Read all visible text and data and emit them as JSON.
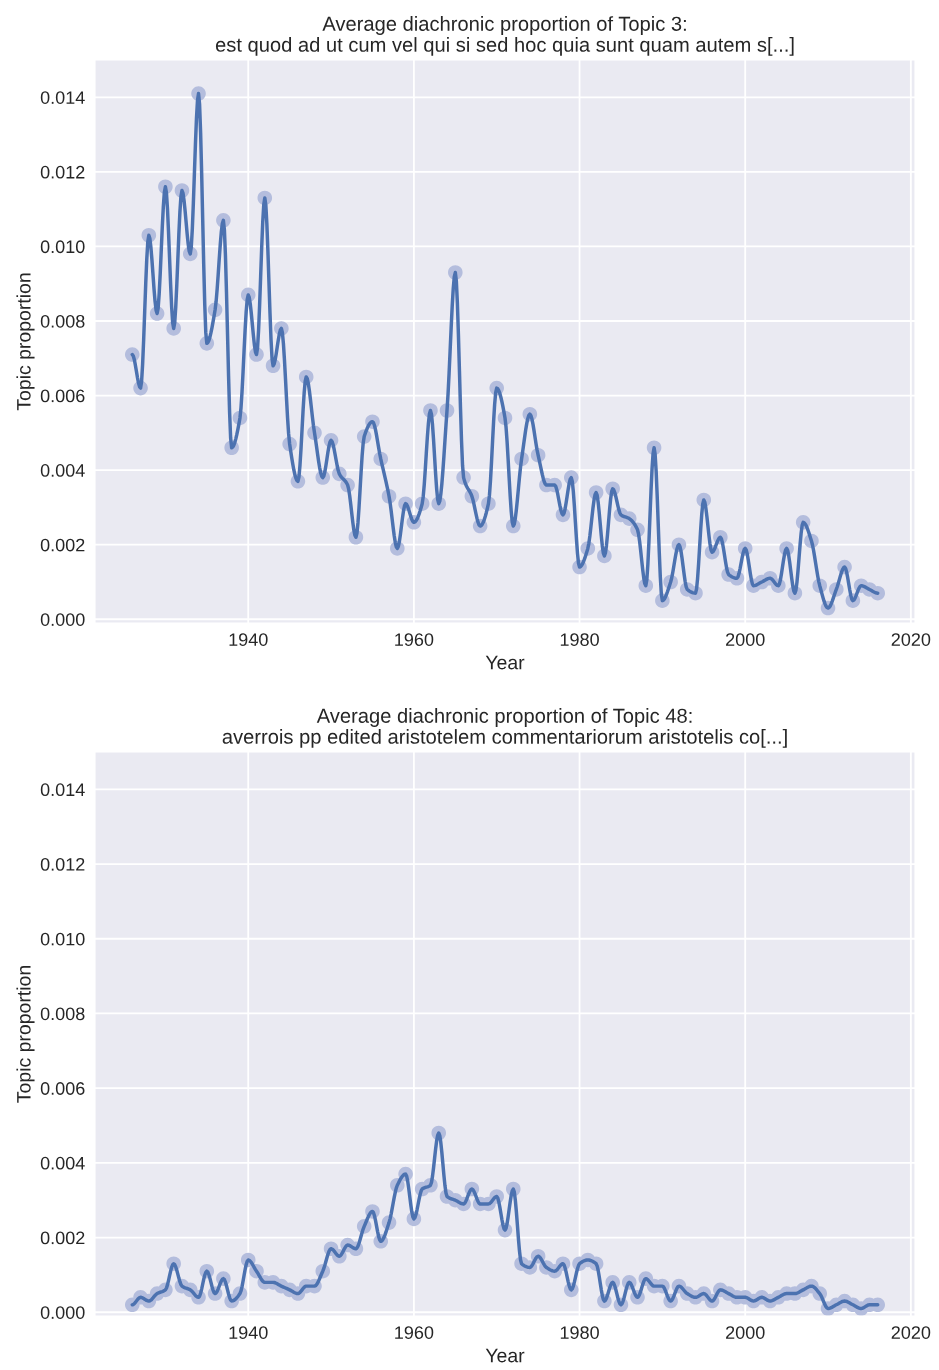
{
  "chart_data": [
    {
      "type": "line",
      "title": "Average diachronic proportion of Topic 3:\nest quod ad ut cum vel qui si sed hoc quia sunt quam autem s[...]",
      "xlabel": "Year",
      "ylabel": "Topic proportion",
      "x": [
        1926,
        1927,
        1928,
        1929,
        1930,
        1931,
        1932,
        1933,
        1934,
        1935,
        1936,
        1937,
        1938,
        1939,
        1940,
        1941,
        1942,
        1943,
        1944,
        1945,
        1946,
        1947,
        1948,
        1949,
        1950,
        1951,
        1952,
        1953,
        1954,
        1955,
        1956,
        1957,
        1958,
        1959,
        1960,
        1961,
        1962,
        1963,
        1964,
        1965,
        1966,
        1967,
        1968,
        1969,
        1970,
        1971,
        1972,
        1973,
        1974,
        1975,
        1976,
        1977,
        1978,
        1979,
        1980,
        1981,
        1982,
        1983,
        1984,
        1985,
        1986,
        1987,
        1988,
        1989,
        1990,
        1991,
        1992,
        1993,
        1994,
        1995,
        1996,
        1997,
        1998,
        1999,
        2000,
        2001,
        2002,
        2003,
        2004,
        2005,
        2006,
        2007,
        2008,
        2009,
        2010,
        2011,
        2012,
        2013,
        2014,
        2015,
        2016
      ],
      "series": [
        {
          "type": "scatter",
          "color": "#b4bddd",
          "values": [
            0.0071,
            0.0062,
            0.0103,
            0.0082,
            0.0116,
            0.0078,
            0.0115,
            0.0098,
            0.0141,
            0.0074,
            0.0083,
            0.0107,
            0.0046,
            0.0054,
            0.0087,
            0.0071,
            0.0113,
            0.0068,
            0.0078,
            0.0047,
            0.0037,
            0.0065,
            0.005,
            0.0038,
            0.0048,
            0.0039,
            0.0036,
            0.0022,
            0.0049,
            0.0053,
            0.0043,
            0.0033,
            0.0019,
            0.0031,
            0.0026,
            0.0031,
            0.0056,
            0.0031,
            0.0056,
            0.0093,
            0.0038,
            0.0033,
            0.0025,
            0.0031,
            0.0062,
            0.0054,
            0.0025,
            0.0043,
            0.0055,
            0.0044,
            0.0036,
            0.0036,
            0.0028,
            0.0038,
            0.0014,
            0.0019,
            0.0034,
            0.0017,
            0.0035,
            0.0028,
            0.0027,
            0.0024,
            0.0009,
            0.0046,
            0.0005,
            0.001,
            0.002,
            0.0008,
            0.0007,
            0.0032,
            0.0018,
            0.0022,
            0.0012,
            0.0011,
            0.0019,
            0.0009,
            0.001,
            0.0011,
            0.0009,
            0.0019,
            0.0007,
            0.0026,
            0.0021,
            0.0009,
            0.0003,
            0.0008,
            0.0014,
            0.0005,
            0.0009,
            0.0008,
            0.0007
          ]
        },
        {
          "color": "#4c72b0",
          "values": [
            0.0071,
            0.0062,
            0.0103,
            0.0082,
            0.0116,
            0.0078,
            0.0115,
            0.0098,
            0.0141,
            0.0074,
            0.0083,
            0.0107,
            0.0046,
            0.0054,
            0.0087,
            0.0071,
            0.0113,
            0.0068,
            0.0078,
            0.0047,
            0.0037,
            0.0065,
            0.005,
            0.0038,
            0.0048,
            0.0039,
            0.0036,
            0.0022,
            0.0049,
            0.0053,
            0.0043,
            0.0033,
            0.0019,
            0.0031,
            0.0026,
            0.0031,
            0.0056,
            0.0031,
            0.0056,
            0.0093,
            0.0038,
            0.0033,
            0.0025,
            0.0031,
            0.0062,
            0.0054,
            0.0025,
            0.0043,
            0.0055,
            0.0044,
            0.0036,
            0.0036,
            0.0028,
            0.0038,
            0.0014,
            0.0019,
            0.0034,
            0.0017,
            0.0035,
            0.0028,
            0.0027,
            0.0024,
            0.0009,
            0.0046,
            0.0005,
            0.001,
            0.002,
            0.0008,
            0.0007,
            0.0032,
            0.0018,
            0.0022,
            0.0012,
            0.0011,
            0.0019,
            0.0009,
            0.001,
            0.0011,
            0.0009,
            0.0019,
            0.0007,
            0.0026,
            0.0021,
            0.0009,
            0.0003,
            0.0008,
            0.0014,
            0.0005,
            0.0009,
            0.0008,
            0.0007
          ]
        }
      ],
      "xlim": [
        1921.5,
        2020.5
      ],
      "xticks": [
        1940,
        1960,
        1980,
        2000,
        2020
      ],
      "ylim": [
        -0.0001,
        0.015
      ],
      "yticks": [
        {
          "value": 0,
          "label": "0.000"
        },
        {
          "value": 0.002,
          "label": "0.002"
        },
        {
          "value": 0.004,
          "label": "0.004"
        },
        {
          "value": 0.006,
          "label": "0.006"
        },
        {
          "value": 0.008,
          "label": "0.008"
        },
        {
          "value": 0.01,
          "label": "0.010"
        },
        {
          "value": 0.012,
          "label": "0.012"
        },
        {
          "value": 0.014,
          "label": "0.014"
        }
      ],
      "grid": true,
      "legend": false
    },
    {
      "type": "line",
      "title": "Average diachronic proportion of Topic 48:\naverrois pp edited aristotelem commentariorum aristotelis co[...]",
      "xlabel": "Year",
      "ylabel": "Topic proportion",
      "x": [
        1926,
        1927,
        1928,
        1929,
        1930,
        1931,
        1932,
        1933,
        1934,
        1935,
        1936,
        1937,
        1938,
        1939,
        1940,
        1941,
        1942,
        1943,
        1944,
        1945,
        1946,
        1947,
        1948,
        1949,
        1950,
        1951,
        1952,
        1953,
        1954,
        1955,
        1956,
        1957,
        1958,
        1959,
        1960,
        1961,
        1962,
        1963,
        1964,
        1965,
        1966,
        1967,
        1968,
        1969,
        1970,
        1971,
        1972,
        1973,
        1974,
        1975,
        1976,
        1977,
        1978,
        1979,
        1980,
        1981,
        1982,
        1983,
        1984,
        1985,
        1986,
        1987,
        1988,
        1989,
        1990,
        1991,
        1992,
        1993,
        1994,
        1995,
        1996,
        1997,
        1998,
        1999,
        2000,
        2001,
        2002,
        2003,
        2004,
        2005,
        2006,
        2007,
        2008,
        2009,
        2010,
        2011,
        2012,
        2013,
        2014,
        2015,
        2016
      ],
      "series": [
        {
          "type": "scatter",
          "color": "#b4bddd",
          "values": [
            0.0002,
            0.0004,
            0.0003,
            0.0005,
            0.0006,
            0.0013,
            0.0007,
            0.0006,
            0.0004,
            0.0011,
            0.0005,
            0.0009,
            0.0003,
            0.0005,
            0.0014,
            0.0011,
            0.0008,
            0.0008,
            0.0007,
            0.0006,
            0.0005,
            0.0007,
            0.0007,
            0.0011,
            0.0017,
            0.0015,
            0.0018,
            0.0017,
            0.0023,
            0.0027,
            0.0019,
            0.0024,
            0.0034,
            0.0037,
            0.0025,
            0.0033,
            0.0034,
            0.0048,
            0.0031,
            0.003,
            0.0029,
            0.0033,
            0.0029,
            0.0029,
            0.0031,
            0.0022,
            0.0033,
            0.0013,
            0.0012,
            0.0015,
            0.0012,
            0.0011,
            0.0013,
            0.0006,
            0.0013,
            0.0014,
            0.0013,
            0.0003,
            0.0008,
            0.0002,
            0.0008,
            0.0004,
            0.0009,
            0.0007,
            0.0007,
            0.0003,
            0.0007,
            0.0005,
            0.0004,
            0.0005,
            0.0003,
            0.0006,
            0.0005,
            0.0004,
            0.0004,
            0.0003,
            0.0004,
            0.0003,
            0.0004,
            0.0005,
            0.0005,
            0.0006,
            0.0007,
            0.0005,
            0.0001,
            0.0002,
            0.0003,
            0.0002,
            0.0001,
            0.0002,
            0.0002
          ]
        },
        {
          "color": "#4c72b0",
          "values": [
            0.0002,
            0.0004,
            0.0003,
            0.0005,
            0.0006,
            0.0013,
            0.0007,
            0.0006,
            0.0004,
            0.0011,
            0.0005,
            0.0009,
            0.0003,
            0.0005,
            0.0014,
            0.0011,
            0.0008,
            0.0008,
            0.0007,
            0.0006,
            0.0005,
            0.0007,
            0.0007,
            0.0011,
            0.0017,
            0.0015,
            0.0018,
            0.0017,
            0.0023,
            0.0027,
            0.0019,
            0.0024,
            0.0034,
            0.0037,
            0.0025,
            0.0033,
            0.0034,
            0.0048,
            0.0031,
            0.003,
            0.0029,
            0.0033,
            0.0029,
            0.0029,
            0.0031,
            0.0022,
            0.0033,
            0.0013,
            0.0012,
            0.0015,
            0.0012,
            0.0011,
            0.0013,
            0.0006,
            0.0013,
            0.0014,
            0.0013,
            0.0003,
            0.0008,
            0.0002,
            0.0008,
            0.0004,
            0.0009,
            0.0007,
            0.0007,
            0.0003,
            0.0007,
            0.0005,
            0.0004,
            0.0005,
            0.0003,
            0.0006,
            0.0005,
            0.0004,
            0.0004,
            0.0003,
            0.0004,
            0.0003,
            0.0004,
            0.0005,
            0.0005,
            0.0006,
            0.0007,
            0.0005,
            0.0001,
            0.0002,
            0.0003,
            0.0002,
            0.0001,
            0.0002,
            0.0002
          ]
        }
      ],
      "xlim": [
        1921.5,
        2020.5
      ],
      "xticks": [
        1940,
        1960,
        1980,
        2000,
        2020
      ],
      "ylim": [
        -0.0001,
        0.015
      ],
      "yticks": [
        {
          "value": 0,
          "label": "0.000"
        },
        {
          "value": 0.002,
          "label": "0.002"
        },
        {
          "value": 0.004,
          "label": "0.004"
        },
        {
          "value": 0.006,
          "label": "0.006"
        },
        {
          "value": 0.008,
          "label": "0.008"
        },
        {
          "value": 0.01,
          "label": "0.010"
        },
        {
          "value": 0.012,
          "label": "0.012"
        },
        {
          "value": 0.014,
          "label": "0.014"
        }
      ],
      "grid": true,
      "legend": false
    }
  ]
}
